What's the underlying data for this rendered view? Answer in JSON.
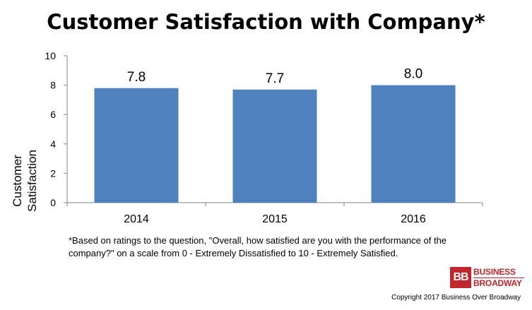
{
  "chart_data": {
    "type": "bar",
    "title": "Customer Satisfaction with Company*",
    "ylabel": "Customer Satisfaction",
    "xlabel": "",
    "categories": [
      "2014",
      "2015",
      "2016"
    ],
    "values": [
      7.8,
      7.7,
      8.0
    ],
    "data_labels": [
      "7.8",
      "7.7",
      "8.0"
    ],
    "ylim": [
      0,
      10
    ],
    "yticks": [
      0,
      2,
      4,
      6,
      8,
      10
    ],
    "bar_color": "#4f81bd",
    "grid": false,
    "legend": "none"
  },
  "footnote": "*Based on ratings to the question, \"Overall, how satisfied are you with the performance of the company?\" on a scale from 0 - Extremely Dissatisfied to 10 - Extremely Satisfied.",
  "logo": {
    "mark": "BB",
    "line1": "BUSINESS",
    "line2": "BROADWAY",
    "color": "#c0262d"
  },
  "copyright": "Copyright 2017 Business Over Broadway"
}
